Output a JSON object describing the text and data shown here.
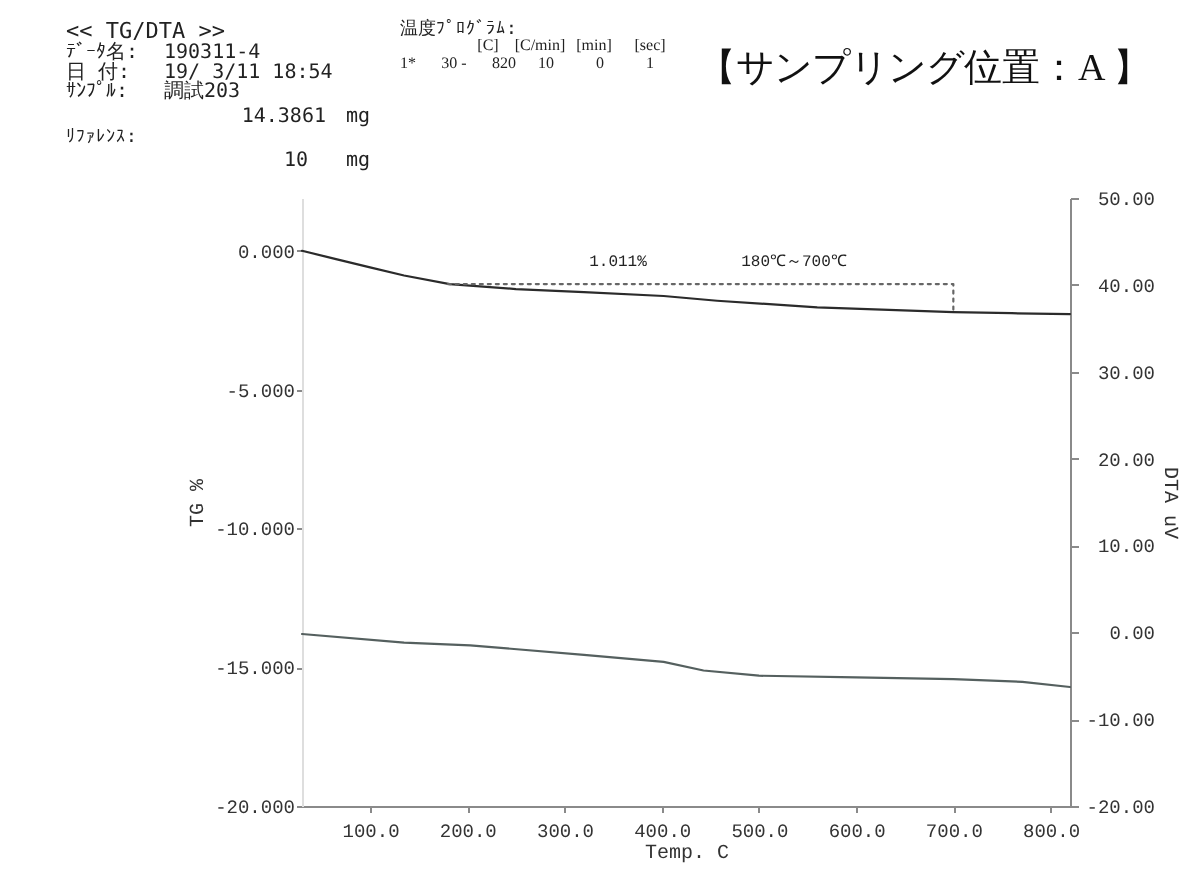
{
  "chart_data": {
    "type": "line",
    "title": "【サンプリング位置：A 】",
    "xlabel": "Temp. C",
    "ylabel": "TG %",
    "y2label": "DTA uV",
    "series": [
      {
        "color": "#2b2b2b",
        "x": [
          30,
          65,
          100,
          135,
          182,
          250,
          320,
          402,
          457,
          560,
          700,
          760,
          820
        ],
        "values": [
          0.0,
          -0.3,
          -0.6,
          -0.89,
          -1.2,
          -1.38,
          -1.49,
          -1.63,
          -1.8,
          -2.04,
          -2.21,
          -2.25,
          -2.28
        ]
      },
      {
        "color": "#55605f",
        "axis": "y2",
        "x": [
          30,
          135,
          203,
          320,
          402,
          443,
          500,
          600,
          700,
          771,
          820
        ],
        "values": [
          -0.2,
          -1.2,
          -1.5,
          -2.6,
          -3.4,
          -4.4,
          -5.0,
          -5.2,
          -5.4,
          -5.7,
          -6.3
        ]
      },
      {
        "type": "line",
        "line_style": "dotted",
        "color": "#666666",
        "x": [
          180,
          700,
          700
        ],
        "values": [
          -1.2,
          -1.2,
          -2.21
        ]
      }
    ],
    "xlim": [
      30,
      820
    ],
    "xticks": [
      {
        "value": 100,
        "label": "100.0"
      },
      {
        "value": 200,
        "label": "200.0"
      },
      {
        "value": 300,
        "label": "300.0"
      },
      {
        "value": 400,
        "label": "400.0"
      },
      {
        "value": 500,
        "label": "500.0"
      },
      {
        "value": 600,
        "label": "600.0"
      },
      {
        "value": 700,
        "label": "700.0"
      },
      {
        "value": 800,
        "label": "800.0"
      }
    ],
    "ylim": [
      -20,
      1.9
    ],
    "yticks": [
      {
        "value": 0,
        "label": "0.000"
      },
      {
        "value": -5,
        "label": "-5.000"
      },
      {
        "value": -10,
        "label": "-10.000"
      },
      {
        "value": -15,
        "label": "-15.000"
      },
      {
        "value": -20,
        "label": "-20.000"
      }
    ],
    "y2lim": [
      -20,
      50
    ],
    "y2ticks": [
      {
        "value": 50,
        "label": "50.00"
      },
      {
        "value": 40,
        "label": "40.00"
      },
      {
        "value": 30,
        "label": "30.00"
      },
      {
        "value": 20,
        "label": "20.00"
      },
      {
        "value": 10,
        "label": "10.00"
      },
      {
        "value": 0,
        "label": "0.00"
      },
      {
        "value": -10,
        "label": "-10.00"
      },
      {
        "value": -20,
        "label": "-20.00"
      }
    ],
    "annotations": [
      "<< TG/DTA >>",
      "ﾃﾞｰﾀ名:",
      "190311-4",
      "日 付:",
      "19/ 3/11 18:54",
      "ｻﾝﾌﾟﾙ:",
      "調試203",
      "14.3861",
      "mg",
      "ﾘﾌｧﾚﾝｽ:",
      "10",
      "mg",
      "温度ﾌﾟﾛｸﾞﾗﾑ:",
      "[C]",
      "[C/min]",
      "[min]",
      "[sec]",
      "1*",
      "30 -",
      "820",
      "10",
      "0",
      "1",
      "1.011%",
      "180℃～700℃"
    ],
    "grid": false
  }
}
